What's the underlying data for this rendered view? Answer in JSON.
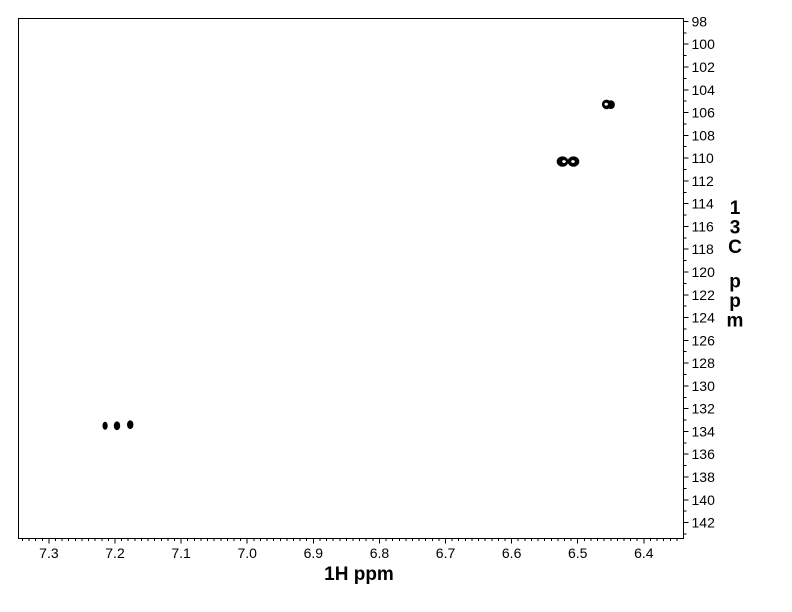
{
  "chart_data": {
    "type": "scatter",
    "subtype": "2D NMR heteronuclear correlation spectrum (HSQC-type contour map)",
    "title": "",
    "xlabel": "1H ppm",
    "ylabel": "13C ppm",
    "grid": false,
    "legend": false,
    "x_axis": {
      "tick_labels": [
        "7.3",
        "7.2",
        "7.1",
        "7.0",
        "6.9",
        "6.8",
        "6.7",
        "6.6",
        "6.5",
        "6.4"
      ],
      "major_step": 0.1,
      "minor_step": 0.01,
      "left_edge": 7.346,
      "right_edge": 6.34,
      "direction": "decreasing-to-right",
      "labels_position": "bottom"
    },
    "y_axis": {
      "tick_labels": [
        "98",
        "100",
        "102",
        "104",
        "106",
        "108",
        "110",
        "112",
        "114",
        "116",
        "118",
        "120",
        "122",
        "124",
        "126",
        "128",
        "130",
        "132",
        "134",
        "136",
        "138",
        "140",
        "142"
      ],
      "major_step": 2,
      "minor_step": 1,
      "top_edge": 97.74,
      "bottom_edge": 143.4,
      "direction": "increasing-downward",
      "labels_position": "right"
    },
    "peaks": [
      {
        "h1": 6.453,
        "c13": 105.3,
        "style": "contour-pair"
      },
      {
        "h1": 6.514,
        "c13": 110.3,
        "style": "ring-pair"
      },
      {
        "h1": 7.215,
        "c13": 133.5,
        "style": "dot-small"
      },
      {
        "h1": 7.197,
        "c13": 133.5,
        "style": "dot"
      },
      {
        "h1": 7.177,
        "c13": 133.4,
        "style": "dot"
      }
    ],
    "colors": {
      "foreground": "#000000",
      "background": "#ffffff"
    }
  }
}
